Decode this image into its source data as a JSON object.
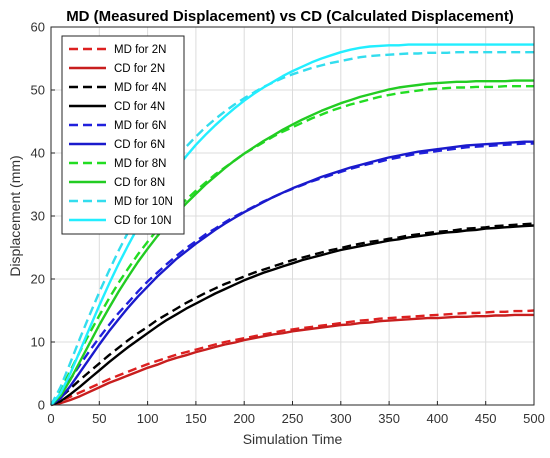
{
  "chart_data": {
    "type": "line",
    "title": "MD (Measured Displacement) vs CD (Calculated Displacement)",
    "xlabel": "Simulation Time",
    "ylabel": "Displacement (mm)",
    "xlim": [
      0,
      500
    ],
    "ylim": [
      0,
      60
    ],
    "xticks": [
      0,
      50,
      100,
      150,
      200,
      250,
      300,
      350,
      400,
      450,
      500
    ],
    "yticks": [
      0,
      10,
      20,
      30,
      40,
      50,
      60
    ],
    "grid": true,
    "legend_position": "top-left",
    "x": [
      0,
      10,
      20,
      30,
      40,
      50,
      60,
      70,
      80,
      90,
      100,
      110,
      120,
      130,
      140,
      150,
      160,
      170,
      180,
      190,
      200,
      210,
      220,
      230,
      240,
      250,
      260,
      270,
      280,
      290,
      300,
      310,
      320,
      330,
      340,
      350,
      360,
      370,
      380,
      390,
      400,
      410,
      420,
      430,
      440,
      450,
      460,
      470,
      480,
      490,
      500
    ],
    "series": [
      {
        "name": "MD for 2N",
        "color": "#dd2020",
        "style": "dashed",
        "values": [
          0.0,
          0.6,
          1.3,
          2.0,
          2.7,
          3.4,
          4.1,
          4.7,
          5.3,
          5.9,
          6.5,
          7.0,
          7.5,
          8.0,
          8.4,
          8.8,
          9.2,
          9.6,
          10.0,
          10.3,
          10.6,
          10.9,
          11.2,
          11.5,
          11.8,
          12.0,
          12.2,
          12.4,
          12.6,
          12.8,
          13.0,
          13.2,
          13.4,
          13.5,
          13.7,
          13.8,
          13.9,
          14.0,
          14.1,
          14.2,
          14.3,
          14.4,
          14.5,
          14.6,
          14.6,
          14.7,
          14.8,
          14.8,
          14.9,
          14.9,
          15.0
        ]
      },
      {
        "name": "CD for 2N",
        "color": "#c81e1e",
        "style": "solid",
        "values": [
          0.0,
          0.3,
          0.8,
          1.4,
          2.1,
          2.8,
          3.5,
          4.1,
          4.7,
          5.3,
          5.9,
          6.4,
          7.0,
          7.5,
          7.9,
          8.4,
          8.8,
          9.2,
          9.6,
          9.9,
          10.3,
          10.6,
          10.9,
          11.2,
          11.4,
          11.7,
          11.9,
          12.1,
          12.3,
          12.5,
          12.7,
          12.8,
          13.0,
          13.1,
          13.3,
          13.4,
          13.5,
          13.6,
          13.7,
          13.8,
          13.8,
          13.9,
          14.0,
          14.0,
          14.1,
          14.1,
          14.2,
          14.2,
          14.3,
          14.3,
          14.3
        ]
      },
      {
        "name": "MD for 4N",
        "color": "#000000",
        "style": "dashed",
        "values": [
          0.0,
          1.2,
          2.6,
          4.0,
          5.3,
          6.6,
          7.9,
          9.1,
          10.3,
          11.4,
          12.4,
          13.5,
          14.4,
          15.3,
          16.2,
          17.0,
          17.8,
          18.5,
          19.2,
          19.8,
          20.4,
          21.0,
          21.5,
          22.0,
          22.5,
          23.0,
          23.4,
          23.8,
          24.2,
          24.6,
          24.9,
          25.3,
          25.6,
          25.9,
          26.1,
          26.4,
          26.6,
          26.9,
          27.1,
          27.3,
          27.5,
          27.6,
          27.8,
          28.0,
          28.1,
          28.2,
          28.4,
          28.5,
          28.6,
          28.7,
          28.8
        ]
      },
      {
        "name": "CD for 4N",
        "color": "#000000",
        "style": "solid",
        "values": [
          0.0,
          0.6,
          1.7,
          2.9,
          4.2,
          5.5,
          6.8,
          8.0,
          9.2,
          10.3,
          11.4,
          12.5,
          13.5,
          14.4,
          15.3,
          16.1,
          16.9,
          17.7,
          18.4,
          19.1,
          19.8,
          20.4,
          21.0,
          21.5,
          22.0,
          22.5,
          23.0,
          23.4,
          23.8,
          24.2,
          24.6,
          24.9,
          25.2,
          25.5,
          25.8,
          26.1,
          26.3,
          26.6,
          26.8,
          27.0,
          27.2,
          27.4,
          27.5,
          27.7,
          27.8,
          28.0,
          28.1,
          28.2,
          28.3,
          28.4,
          28.5
        ]
      },
      {
        "name": "MD for 6N",
        "color": "#2020dd",
        "style": "dashed",
        "values": [
          0.0,
          1.8,
          4.1,
          6.4,
          8.6,
          10.7,
          12.7,
          14.6,
          16.3,
          18.0,
          19.6,
          21.0,
          22.4,
          23.7,
          24.9,
          26.0,
          27.1,
          28.0,
          29.0,
          29.9,
          30.7,
          31.5,
          32.3,
          33.0,
          33.7,
          34.3,
          34.9,
          35.5,
          36.0,
          36.5,
          37.0,
          37.5,
          37.9,
          38.3,
          38.6,
          39.0,
          39.3,
          39.6,
          39.9,
          40.1,
          40.3,
          40.5,
          40.7,
          40.9,
          41.0,
          41.1,
          41.2,
          41.3,
          41.4,
          41.5,
          41.5
        ]
      },
      {
        "name": "CD for 6N",
        "color": "#1a1acc",
        "style": "solid",
        "values": [
          0.0,
          1.1,
          3.0,
          5.2,
          7.4,
          9.6,
          11.7,
          13.6,
          15.5,
          17.2,
          18.8,
          20.4,
          21.8,
          23.2,
          24.4,
          25.6,
          26.7,
          27.8,
          28.8,
          29.7,
          30.6,
          31.4,
          32.2,
          33.0,
          33.7,
          34.4,
          35.0,
          35.6,
          36.2,
          36.7,
          37.2,
          37.7,
          38.1,
          38.5,
          38.9,
          39.3,
          39.6,
          39.9,
          40.2,
          40.4,
          40.6,
          40.8,
          41.0,
          41.2,
          41.3,
          41.4,
          41.5,
          41.6,
          41.7,
          41.8,
          41.8
        ]
      },
      {
        "name": "MD for 8N",
        "color": "#22dd22",
        "style": "dashed",
        "values": [
          0.0,
          2.4,
          5.4,
          8.5,
          11.4,
          14.2,
          16.9,
          19.4,
          21.7,
          23.9,
          25.9,
          27.8,
          29.5,
          31.1,
          32.6,
          34.0,
          35.3,
          36.6,
          37.7,
          38.8,
          39.9,
          40.8,
          41.7,
          42.6,
          43.4,
          44.1,
          44.8,
          45.5,
          46.1,
          46.7,
          47.2,
          47.7,
          48.1,
          48.5,
          48.9,
          49.2,
          49.5,
          49.7,
          49.9,
          50.1,
          50.2,
          50.3,
          50.4,
          50.4,
          50.5,
          50.5,
          50.5,
          50.6,
          50.6,
          50.6,
          50.6
        ]
      },
      {
        "name": "CD for 8N",
        "color": "#22cc22",
        "style": "solid",
        "values": [
          0.0,
          1.5,
          4.0,
          6.9,
          9.8,
          12.7,
          15.4,
          18.0,
          20.4,
          22.7,
          24.8,
          26.8,
          28.6,
          30.4,
          32.0,
          33.5,
          35.0,
          36.3,
          37.6,
          38.8,
          39.9,
          40.9,
          41.9,
          42.8,
          43.7,
          44.5,
          45.3,
          46.0,
          46.7,
          47.3,
          47.9,
          48.4,
          48.9,
          49.3,
          49.7,
          50.1,
          50.4,
          50.6,
          50.8,
          51.0,
          51.1,
          51.2,
          51.3,
          51.3,
          51.4,
          51.4,
          51.4,
          51.4,
          51.5,
          51.5,
          51.5
        ]
      },
      {
        "name": "MD for 10N",
        "color": "#33ddee",
        "style": "dashed",
        "values": [
          0.0,
          2.9,
          6.7,
          10.6,
          14.3,
          17.9,
          21.3,
          24.5,
          27.5,
          30.3,
          32.9,
          35.2,
          37.3,
          39.2,
          41.0,
          42.6,
          44.1,
          45.4,
          46.6,
          47.7,
          48.7,
          49.6,
          50.5,
          51.2,
          51.9,
          52.5,
          53.0,
          53.5,
          53.9,
          54.3,
          54.6,
          54.9,
          55.2,
          55.4,
          55.5,
          55.6,
          55.7,
          55.8,
          55.8,
          55.9,
          55.9,
          55.9,
          56.0,
          56.0,
          56.0,
          56.0,
          56.0,
          56.0,
          56.0,
          56.0,
          56.0
        ]
      },
      {
        "name": "CD for 10N",
        "color": "#22eeff",
        "style": "solid",
        "values": [
          0.0,
          1.9,
          5.0,
          8.6,
          12.2,
          15.8,
          19.2,
          22.4,
          25.4,
          28.2,
          30.8,
          33.3,
          35.5,
          37.6,
          39.5,
          41.3,
          42.9,
          44.4,
          45.8,
          47.1,
          48.3,
          49.4,
          50.4,
          51.3,
          52.2,
          53.0,
          53.7,
          54.4,
          55.0,
          55.5,
          56.0,
          56.4,
          56.7,
          56.9,
          57.0,
          57.1,
          57.1,
          57.2,
          57.2,
          57.2,
          57.2,
          57.2,
          57.2,
          57.2,
          57.2,
          57.2,
          57.2,
          57.2,
          57.2,
          57.2,
          57.2
        ]
      }
    ]
  }
}
